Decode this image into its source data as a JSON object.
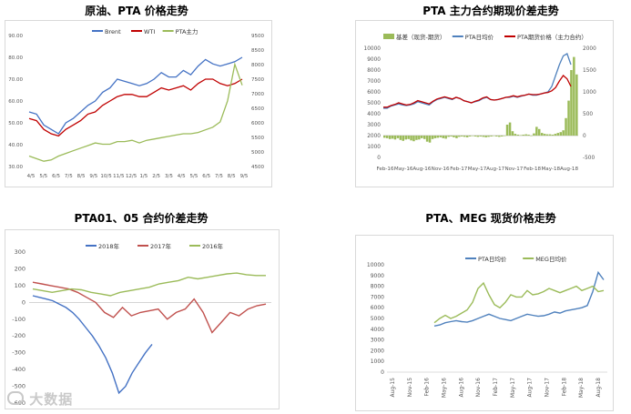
{
  "charts": [
    {
      "title": "原油、PTA 价格走势",
      "type": "line",
      "legend": [
        "Brent",
        "WTI",
        "PTA主力"
      ],
      "x_ticks": [
        "4/5",
        "5/5",
        "6/5",
        "7/5",
        "8/5",
        "9/5",
        "10/5",
        "11/5",
        "12/5",
        "1/5",
        "2/5",
        "3/5",
        "4/5",
        "5/5",
        "6/5",
        "7/5",
        "8/5",
        "9/5"
      ],
      "y_left_ticks": [
        "30.00",
        "40.00",
        "50.00",
        "60.00",
        "70.00",
        "80.00",
        "90.00"
      ],
      "y_right_ticks": [
        "4500",
        "5000",
        "5500",
        "6000",
        "6500",
        "7000",
        "7500",
        "8000",
        "8500",
        "9500"
      ],
      "ylim_left": [
        30,
        90
      ],
      "ylim_right": [
        4500,
        9500
      ],
      "colors": [
        "#4472c4",
        "#c00000",
        "#9bbb59"
      ],
      "series": [
        {
          "name": "Brent",
          "axis": "left",
          "values": [
            55,
            54,
            49,
            47,
            45,
            50,
            52,
            55,
            58,
            60,
            64,
            66,
            70,
            69,
            68,
            67,
            68,
            70,
            73,
            71,
            71,
            74,
            72,
            76,
            79,
            77,
            76,
            77,
            78,
            80
          ]
        },
        {
          "name": "WTI",
          "axis": "left",
          "values": [
            52,
            51,
            47,
            45,
            44,
            47,
            49,
            51,
            54,
            55,
            58,
            60,
            62,
            63,
            63,
            62,
            62,
            64,
            66,
            65,
            66,
            67,
            65,
            68,
            70,
            70,
            68,
            67,
            68,
            70
          ]
        },
        {
          "name": "PTA主力",
          "axis": "right",
          "values": [
            4900,
            4800,
            4700,
            4750,
            4900,
            5000,
            5100,
            5200,
            5300,
            5400,
            5350,
            5350,
            5450,
            5450,
            5500,
            5400,
            5500,
            5550,
            5600,
            5650,
            5700,
            5750,
            5750,
            5800,
            5900,
            6000,
            6200,
            7000,
            8400,
            7600
          ]
        }
      ]
    },
    {
      "title": "PTA 主力合约期现价差走势",
      "type": "bar+line",
      "legend": [
        "基差（现货-期货）",
        "PTA日均价",
        "PTA期货价格（主力合约）"
      ],
      "x_ticks": [
        "Feb-16",
        "May-16",
        "Aug-16",
        "Nov-16",
        "Feb-17",
        "May-17",
        "Aug-17",
        "Nov-17",
        "Feb-18",
        "May-18",
        "Aug-18"
      ],
      "y_left_ticks": [
        "0",
        "1000",
        "2000",
        "3000",
        "4000",
        "5000",
        "6000",
        "7000",
        "8000",
        "9000",
        "10000"
      ],
      "y_right_ticks": [
        "-500",
        "0",
        "500",
        "1000",
        "1500",
        "2000"
      ],
      "ylim_left": [
        0,
        10000
      ],
      "ylim_right": [
        -500,
        2000
      ],
      "colors": [
        "#9bbb59",
        "#4f81bd",
        "#c00000"
      ],
      "basis": [
        -50,
        -60,
        -80,
        -70,
        -90,
        -60,
        -100,
        -120,
        -90,
        -80,
        -110,
        -130,
        -100,
        -90,
        -60,
        -80,
        -140,
        -160,
        -80,
        -60,
        -50,
        -40,
        -60,
        -70,
        -30,
        -20,
        -40,
        -60,
        -30,
        -20,
        -30,
        -40,
        -20,
        -10,
        -20,
        -30,
        -20,
        -30,
        -40,
        -30,
        -20,
        -10,
        -20,
        -30,
        -20,
        -10,
        250,
        300,
        100,
        40,
        20,
        10,
        20,
        30,
        20,
        -10,
        50,
        200,
        150,
        60,
        40,
        30,
        30,
        20,
        40,
        60,
        80,
        120,
        400,
        800,
        1500,
        1800,
        1400
      ],
      "series": [
        {
          "name": "PTA日均价",
          "axis": "left",
          "values": [
            4500,
            4500,
            4700,
            4800,
            4900,
            4800,
            4750,
            4800,
            4900,
            5100,
            5000,
            4900,
            4800,
            5100,
            5300,
            5400,
            5500,
            5400,
            5300,
            5500,
            5400,
            5200,
            5100,
            5000,
            5100,
            5200,
            5400,
            5500,
            5300,
            5250,
            5300,
            5400,
            5500,
            5500,
            5600,
            5500,
            5600,
            5700,
            5800,
            5700,
            5700,
            5800,
            5900,
            6000,
            6500,
            7500,
            8500,
            9300,
            9500,
            8500
          ]
        },
        {
          "name": "PTA期货价格（主力合约）",
          "axis": "left",
          "values": [
            4600,
            4600,
            4750,
            4850,
            5000,
            4900,
            4800,
            4850,
            5000,
            5200,
            5100,
            5000,
            4900,
            5150,
            5350,
            5450,
            5550,
            5450,
            5350,
            5500,
            5400,
            5200,
            5100,
            5000,
            5150,
            5250,
            5450,
            5550,
            5300,
            5250,
            5300,
            5400,
            5500,
            5550,
            5650,
            5550,
            5650,
            5700,
            5800,
            5750,
            5750,
            5800,
            5900,
            5950,
            6100,
            6400,
            7000,
            7500,
            7200,
            6500
          ]
        }
      ]
    },
    {
      "title": "PTA01、05 合约价差走势",
      "type": "line",
      "legend": [
        "2018年",
        "2017年",
        "2016年"
      ],
      "y_ticks": [
        "300",
        "200",
        "100",
        "0",
        "-100",
        "-200",
        "-300",
        "-400",
        "-500",
        "-600"
      ],
      "ylim": [
        -600,
        300
      ],
      "colors": [
        "#4472c4",
        "#c0504d",
        "#9bbb59"
      ],
      "series": [
        {
          "name": "2018年",
          "values": [
            40,
            30,
            20,
            10,
            -10,
            -30,
            -60,
            -100,
            -150,
            -200,
            -260,
            -330,
            -420,
            -540,
            -500,
            -420,
            -360,
            -300,
            -250
          ]
        },
        {
          "name": "2017年",
          "values": [
            120,
            110,
            100,
            90,
            80,
            60,
            30,
            0,
            -60,
            -90,
            -30,
            -80,
            -60,
            -50,
            -40,
            -100,
            -60,
            -40,
            20,
            -60,
            -180,
            -120,
            -60,
            -80,
            -40,
            -20,
            -10
          ]
        },
        {
          "name": "2016年",
          "values": [
            80,
            70,
            60,
            70,
            80,
            75,
            60,
            50,
            40,
            60,
            70,
            80,
            90,
            110,
            120,
            130,
            150,
            140,
            150,
            160,
            170,
            175,
            165,
            160,
            160
          ]
        }
      ]
    },
    {
      "title": "PTA、MEG 现货价格走势",
      "type": "line",
      "legend": [
        "PTA日均价",
        "MEG日均价"
      ],
      "x_ticks": [
        "Aug-15",
        "Nov-15",
        "Feb-16",
        "May-16",
        "Aug-16",
        "Nov-16",
        "Feb-17",
        "May-17",
        "Aug-17",
        "Nov-17",
        "Feb-18",
        "May-18",
        "Aug-18"
      ],
      "y_ticks": [
        "0",
        "1000",
        "2000",
        "3000",
        "4000",
        "5000",
        "6000",
        "7000",
        "8000",
        "9000",
        "10000"
      ],
      "ylim": [
        0,
        10000
      ],
      "colors": [
        "#4f81bd",
        "#9bbb59"
      ],
      "series": [
        {
          "name": "PTA日均价",
          "values": [
            null,
            null,
            null,
            null,
            null,
            null,
            null,
            null,
            4300,
            4400,
            4600,
            4700,
            4800,
            4700,
            4650,
            4800,
            5000,
            5200,
            5400,
            5200,
            5000,
            4900,
            4800,
            5000,
            5200,
            5400,
            5300,
            5200,
            5250,
            5400,
            5600,
            5500,
            5700,
            5800,
            5900,
            6000,
            6200,
            7500,
            9300,
            8600
          ]
        },
        {
          "name": "MEG日均价",
          "values": [
            null,
            null,
            null,
            null,
            null,
            null,
            null,
            null,
            4600,
            5000,
            5300,
            5000,
            5200,
            5500,
            5800,
            6500,
            7800,
            8300,
            7200,
            6300,
            6000,
            6500,
            7200,
            7000,
            7000,
            7600,
            7200,
            7300,
            7500,
            7800,
            7600,
            7400,
            7600,
            7800,
            8000,
            7600,
            7800,
            8000,
            7500,
            7600
          ]
        }
      ]
    }
  ],
  "watermark": "大数据",
  "watermark_icon": "chat-bubble-icon"
}
